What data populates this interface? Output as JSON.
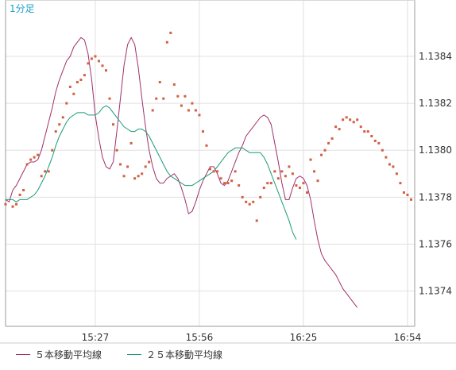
{
  "chart_data": {
    "type": "line",
    "title": "1分足",
    "xlabel": "",
    "ylabel": "",
    "x_ticks": [
      "15:27",
      "15:56",
      "16:25",
      "16:54"
    ],
    "x_tick_index": [
      25,
      54,
      83,
      112
    ],
    "x_range": [
      0,
      114
    ],
    "y_ticks": [
      "1.1374",
      "1.1376",
      "1.1378",
      "1.1380",
      "1.1382",
      "1.1384"
    ],
    "ylim": [
      1.13725,
      1.13864
    ],
    "grid": true,
    "legend_position": "bottom-left",
    "series": [
      {
        "name": "５本移動平均線",
        "color": "#a0306a",
        "values": [
          1.13779,
          1.13778,
          1.13783,
          1.13785,
          1.13788,
          1.13791,
          1.13794,
          1.13795,
          1.13795,
          1.13796,
          1.138,
          1.13806,
          1.13812,
          1.13818,
          1.13825,
          1.1383,
          1.13834,
          1.13838,
          1.1384,
          1.13844,
          1.13846,
          1.13848,
          1.13847,
          1.13841,
          1.1383,
          1.13815,
          1.13805,
          1.13797,
          1.13793,
          1.13792,
          1.13795,
          1.13808,
          1.13822,
          1.13836,
          1.13845,
          1.13848,
          1.13845,
          1.13835,
          1.13822,
          1.1381,
          1.138,
          1.13793,
          1.13788,
          1.13786,
          1.13786,
          1.13788,
          1.13789,
          1.1379,
          1.13788,
          1.13784,
          1.13779,
          1.13773,
          1.13774,
          1.13778,
          1.13783,
          1.13787,
          1.1379,
          1.13793,
          1.13793,
          1.1379,
          1.13786,
          1.13785,
          1.13787,
          1.13791,
          1.13795,
          1.13799,
          1.13802,
          1.13806,
          1.13808,
          1.1381,
          1.13812,
          1.13814,
          1.13815,
          1.13814,
          1.13811,
          1.13803,
          1.13795,
          1.13786,
          1.13779,
          1.13779,
          1.13784,
          1.13788,
          1.13789,
          1.13788,
          1.13785,
          1.13779,
          1.1377,
          1.13762,
          1.13756,
          1.13753,
          1.13751,
          1.13749,
          1.13747,
          1.13744,
          1.13741,
          1.13739,
          1.13737,
          1.13735,
          1.13733
        ]
      },
      {
        "name": "２５本移動平均線",
        "color": "#1a9a78",
        "values": [
          1.13779,
          1.13779,
          1.13779,
          1.13778,
          1.13779,
          1.13779,
          1.13779,
          1.1378,
          1.13781,
          1.13783,
          1.13786,
          1.13789,
          1.13793,
          1.13797,
          1.13802,
          1.13806,
          1.13809,
          1.13812,
          1.13814,
          1.13815,
          1.13816,
          1.13816,
          1.13816,
          1.13815,
          1.13815,
          1.13815,
          1.13816,
          1.13818,
          1.13819,
          1.13818,
          1.13816,
          1.13814,
          1.13812,
          1.1381,
          1.13809,
          1.13808,
          1.13808,
          1.13809,
          1.13809,
          1.13808,
          1.13806,
          1.13803,
          1.138,
          1.13797,
          1.13794,
          1.13791,
          1.13789,
          1.13788,
          1.13787,
          1.13786,
          1.13785,
          1.13785,
          1.13785,
          1.13786,
          1.13787,
          1.13788,
          1.13789,
          1.1379,
          1.13791,
          1.13793,
          1.13795,
          1.13797,
          1.13799,
          1.138,
          1.13801,
          1.13801,
          1.13801,
          1.138,
          1.13799,
          1.13799,
          1.13799,
          1.13799,
          1.13797,
          1.13794,
          1.1379,
          1.13786,
          1.13782,
          1.13778,
          1.13774,
          1.1377,
          1.13765,
          1.13762
        ]
      }
    ],
    "scatter": {
      "color": "#d06040",
      "points": [
        [
          0,
          1.13777
        ],
        [
          2,
          1.13776
        ],
        [
          3,
          1.13777
        ],
        [
          4,
          1.13781
        ],
        [
          5,
          1.13783
        ],
        [
          6,
          1.13794
        ],
        [
          7,
          1.13796
        ],
        [
          8,
          1.13797
        ],
        [
          9,
          1.13798
        ],
        [
          10,
          1.13789
        ],
        [
          11,
          1.13791
        ],
        [
          12,
          1.13791
        ],
        [
          13,
          1.138
        ],
        [
          14,
          1.13808
        ],
        [
          15,
          1.13811
        ],
        [
          16,
          1.13814
        ],
        [
          17,
          1.1382
        ],
        [
          18,
          1.13827
        ],
        [
          19,
          1.13824
        ],
        [
          20,
          1.13829
        ],
        [
          21,
          1.1383
        ],
        [
          22,
          1.13832
        ],
        [
          23,
          1.13837
        ],
        [
          24,
          1.13839
        ],
        [
          25,
          1.1384
        ],
        [
          26,
          1.13838
        ],
        [
          27,
          1.13836
        ],
        [
          28,
          1.13834
        ],
        [
          29,
          1.13822
        ],
        [
          30,
          1.13811
        ],
        [
          31,
          1.138
        ],
        [
          32,
          1.13794
        ],
        [
          33,
          1.13789
        ],
        [
          34,
          1.13793
        ],
        [
          35,
          1.13803
        ],
        [
          36,
          1.13788
        ],
        [
          37,
          1.13789
        ],
        [
          38,
          1.1379
        ],
        [
          39,
          1.13793
        ],
        [
          40,
          1.13795
        ],
        [
          41,
          1.13817
        ],
        [
          42,
          1.13822
        ],
        [
          43,
          1.13829
        ],
        [
          44,
          1.13822
        ],
        [
          45,
          1.13846
        ],
        [
          46,
          1.1385
        ],
        [
          47,
          1.13828
        ],
        [
          48,
          1.13823
        ],
        [
          49,
          1.13819
        ],
        [
          50,
          1.13823
        ],
        [
          51,
          1.13817
        ],
        [
          52,
          1.1382
        ],
        [
          53,
          1.13817
        ],
        [
          54,
          1.13815
        ],
        [
          55,
          1.13808
        ],
        [
          56,
          1.13802
        ],
        [
          57,
          1.13792
        ],
        [
          58,
          1.13791
        ],
        [
          59,
          1.13791
        ],
        [
          60,
          1.13788
        ],
        [
          61,
          1.13786
        ],
        [
          62,
          1.13786
        ],
        [
          63,
          1.13787
        ],
        [
          64,
          1.13791
        ],
        [
          65,
          1.13785
        ],
        [
          66,
          1.1378
        ],
        [
          67,
          1.13778
        ],
        [
          68,
          1.13777
        ],
        [
          69,
          1.13778
        ],
        [
          70,
          1.1377
        ],
        [
          71,
          1.1378
        ],
        [
          72,
          1.13784
        ],
        [
          73,
          1.13786
        ],
        [
          74,
          1.13786
        ],
        [
          75,
          1.13791
        ],
        [
          76,
          1.13788
        ],
        [
          77,
          1.13791
        ],
        [
          78,
          1.13789
        ],
        [
          79,
          1.13793
        ],
        [
          80,
          1.1379
        ],
        [
          81,
          1.13785
        ],
        [
          82,
          1.13784
        ],
        [
          83,
          1.13786
        ],
        [
          84,
          1.13782
        ],
        [
          85,
          1.13796
        ],
        [
          86,
          1.13791
        ],
        [
          87,
          1.13787
        ],
        [
          88,
          1.13798
        ],
        [
          89,
          1.138
        ],
        [
          90,
          1.13803
        ],
        [
          91,
          1.13805
        ],
        [
          92,
          1.1381
        ],
        [
          93,
          1.13809
        ],
        [
          94,
          1.13813
        ],
        [
          95,
          1.13814
        ],
        [
          96,
          1.13813
        ],
        [
          97,
          1.13812
        ],
        [
          98,
          1.13813
        ],
        [
          99,
          1.1381
        ],
        [
          100,
          1.13808
        ],
        [
          101,
          1.13808
        ],
        [
          102,
          1.13806
        ],
        [
          103,
          1.13804
        ],
        [
          104,
          1.13803
        ],
        [
          105,
          1.138
        ],
        [
          106,
          1.13797
        ],
        [
          107,
          1.13794
        ],
        [
          108,
          1.13793
        ],
        [
          109,
          1.1379
        ],
        [
          110,
          1.13786
        ],
        [
          111,
          1.13782
        ],
        [
          112,
          1.13781
        ],
        [
          113,
          1.13779
        ]
      ]
    }
  },
  "legend": {
    "items": [
      {
        "label": "５本移動平均線",
        "color": "#a0306a"
      },
      {
        "label": "２５本移動平均線",
        "color": "#1a9a78"
      }
    ]
  }
}
